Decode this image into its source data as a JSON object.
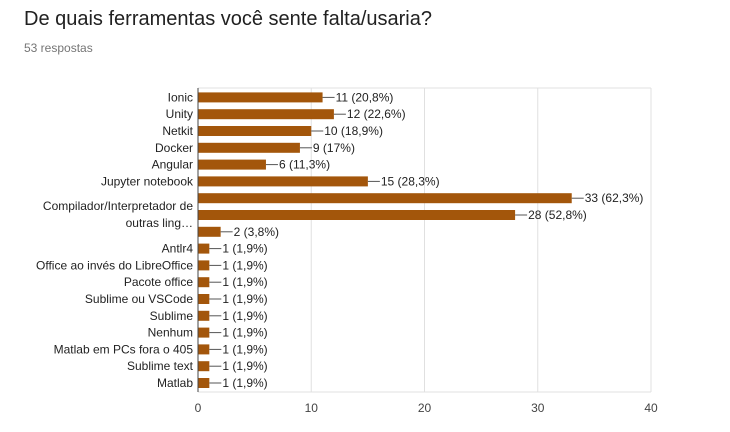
{
  "header": {
    "title": "De quais ferramentas você sente falta/usaria?",
    "subtitle": "53 respostas"
  },
  "colors": {
    "bar": "#a3560b",
    "grid": "#e0e0e0",
    "axis": "#444444",
    "leader": "#555555"
  },
  "chart_data": {
    "type": "bar",
    "orientation": "horizontal",
    "title": "",
    "xlabel": "",
    "ylabel": "",
    "xlim": [
      0,
      40
    ],
    "xticks": [
      0,
      10,
      20,
      30,
      40
    ],
    "grid": true,
    "legend": "none",
    "categories": [
      "Ionic",
      "Unity",
      "Netkit",
      "Docker",
      "Angular",
      "Jupyter notebook",
      "",
      "Compilador/Interpretador de outras ling…",
      "",
      "Antlr4",
      "Office ao invés do LibreOffice",
      "Pacote office",
      "Sublime ou VSCode",
      "Sublime",
      "Nenhum",
      "Matlab em PCs fora o 405",
      "Sublime text",
      "Matlab"
    ],
    "values": [
      11,
      12,
      10,
      9,
      6,
      15,
      33,
      28,
      2,
      1,
      1,
      1,
      1,
      1,
      1,
      1,
      1,
      1
    ],
    "data_labels": [
      "11 (20,8%)",
      "12 (22,6%)",
      "10 (18,9%)",
      "9 (17%)",
      "6 (11,3%)",
      "15 (28,3%)",
      "33 (62,3%)",
      "28 (52,8%)",
      "2 (3,8%)",
      "1 (1,9%)",
      "1 (1,9%)",
      "1 (1,9%)",
      "1 (1,9%)",
      "1 (1,9%)",
      "1 (1,9%)",
      "1 (1,9%)",
      "1 (1,9%)",
      "1 (1,9%)"
    ]
  }
}
